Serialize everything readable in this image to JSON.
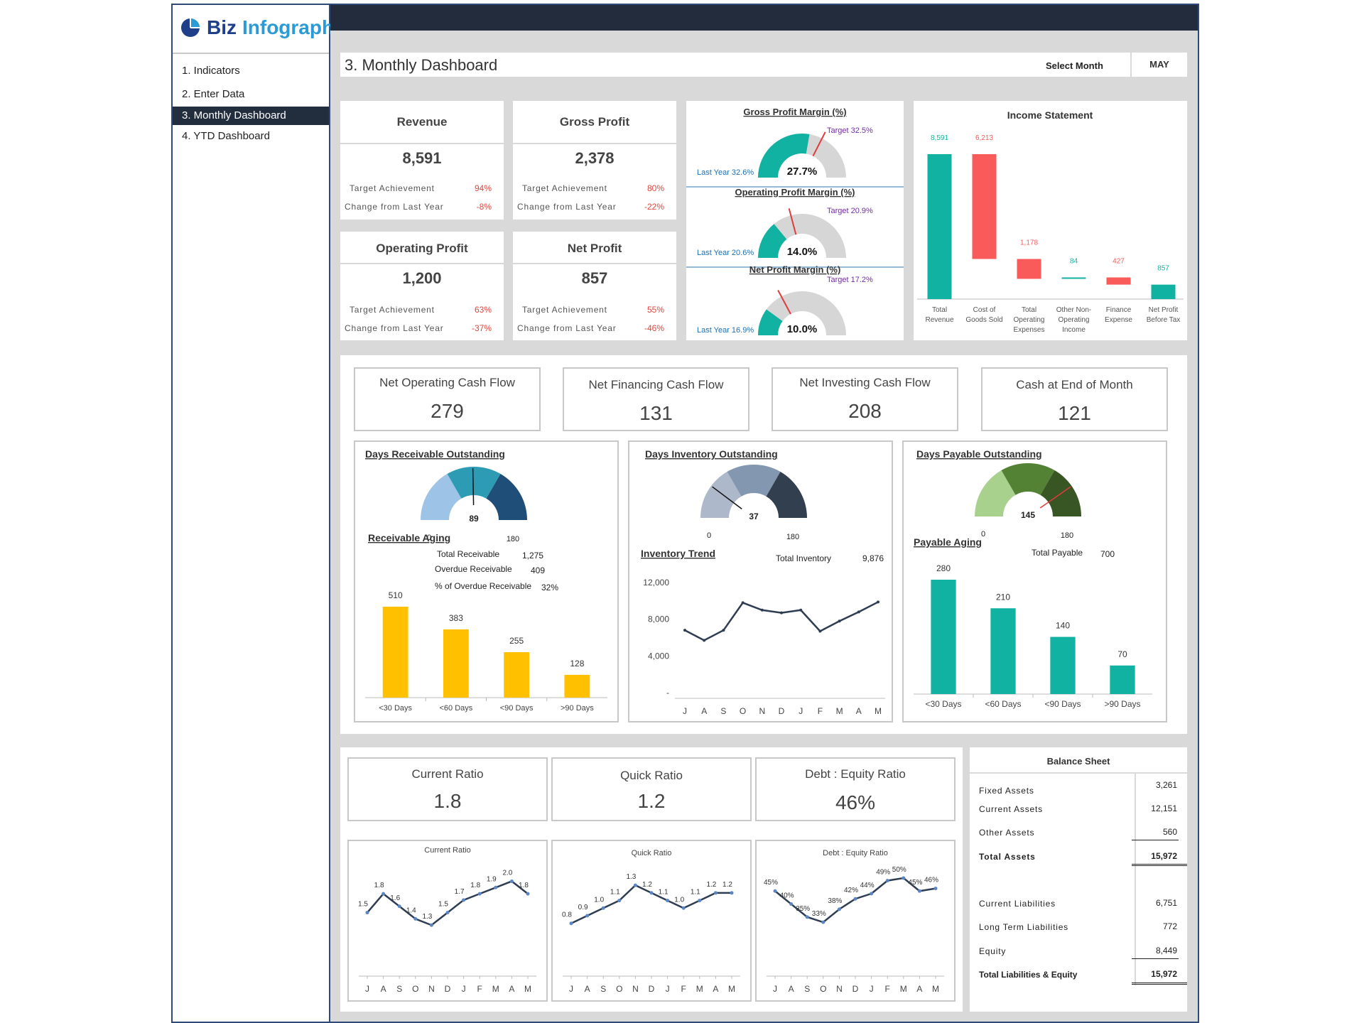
{
  "brand": {
    "name_part1": "Biz",
    "name_part2": "Infograph"
  },
  "nav": {
    "items": [
      {
        "label": "1. Indicators"
      },
      {
        "label": "2. Enter Data"
      },
      {
        "label": "3. Monthly Dashboard"
      },
      {
        "label": "4. YTD Dashboard"
      }
    ],
    "active_index": 2
  },
  "header": {
    "title": "3. Monthly Dashboard",
    "select_label": "Select Month",
    "month": "MAY"
  },
  "kpis": [
    {
      "title": "Revenue",
      "value": "8,591",
      "target_label": "Target Achievement",
      "target": "94%",
      "change_label": "Change from Last Year",
      "change": "-8%"
    },
    {
      "title": "Gross Profit",
      "value": "2,378",
      "target_label": "Target Achievement",
      "target": "80%",
      "change_label": "Change from Last Year",
      "change": "-22%"
    },
    {
      "title": "Operating Profit",
      "value": "1,200",
      "target_label": "Target Achievement",
      "target": "63%",
      "change_label": "Change from Last Year",
      "change": "-37%"
    },
    {
      "title": "Net Profit",
      "value": "857",
      "target_label": "Target Achievement",
      "target": "55%",
      "change_label": "Change from Last Year",
      "change": "-46%"
    }
  ],
  "margins": [
    {
      "title": "Gross Profit Margin (%)",
      "value": "27.7%",
      "value_frac": 0.277,
      "target_label": "Target 32.5%",
      "target_frac": 0.325,
      "last_year_label": "Last Year 32.6%"
    },
    {
      "title": "Operating Profit Margin (%)",
      "value": "14.0%",
      "value_frac": 0.14,
      "target_label": "Target 20.9%",
      "target_frac": 0.209,
      "last_year_label": "Last Year 20.6%"
    },
    {
      "title": "Net Profit Margin (%)",
      "value": "10.0%",
      "value_frac": 0.1,
      "target_label": "Target 17.2%",
      "target_frac": 0.172,
      "last_year_label": "Last Year 16.9%"
    }
  ],
  "income_statement": {
    "title": "Income Statement",
    "chart_data": {
      "type": "bar",
      "categories": [
        "Total Revenue",
        "Cost of Goods Sold",
        "Total Operating Expenses",
        "Other Non-Operating Income",
        "Finance Expense",
        "Net Profit Before Tax"
      ],
      "category_lines": [
        [
          "Total",
          "Revenue"
        ],
        [
          "Cost of",
          "Goods Sold"
        ],
        [
          "Total",
          "Operating",
          "Expenses"
        ],
        [
          "Other Non-",
          "Operating",
          "Income"
        ],
        [
          "Finance",
          "Expense"
        ],
        [
          "Net Profit",
          "Before Tax"
        ]
      ],
      "values": [
        8591,
        6213,
        1178,
        84,
        427,
        857
      ],
      "labels": [
        "8,591",
        "6,213",
        "1,178",
        "84",
        "427",
        "857"
      ],
      "kind": [
        "total",
        "decrease",
        "decrease",
        "increase",
        "decrease",
        "total"
      ],
      "colors": {
        "positive": "#12b2a2",
        "negative": "#f95a5a"
      }
    }
  },
  "cash_flow": [
    {
      "title": "Net Operating Cash Flow",
      "value": "279"
    },
    {
      "title": "Net Financing Cash Flow",
      "value": "131"
    },
    {
      "title": "Net Investing Cash Flow",
      "value": "208"
    },
    {
      "title": "Cash at End of Month",
      "value": "121"
    }
  ],
  "receivable": {
    "gauge_title": "Days Receivable Outstanding",
    "gauge_value": "89",
    "gauge_min": "0",
    "gauge_max": "180",
    "gauge_frac": 0.494,
    "gauge_colors": [
      "#9dc3e6",
      "#2e9bb5",
      "#1f4e79"
    ],
    "aging_title": "Receivable Aging",
    "total_label": "Total Receivable",
    "total": "1,275",
    "overdue_label": "Overdue Receivable",
    "overdue": "409",
    "pct_label": "% of Overdue Receivable",
    "pct": "32%",
    "chart_data": {
      "type": "bar",
      "categories": [
        "<30 Days",
        "<60 Days",
        "<90 Days",
        ">90 Days"
      ],
      "values": [
        510,
        383,
        255,
        128
      ],
      "color": "#ffc000"
    }
  },
  "inventory": {
    "gauge_title": "Days Inventory Outstanding",
    "gauge_value": "37",
    "gauge_min": "0",
    "gauge_max": "180",
    "gauge_frac": 0.205,
    "gauge_colors": [
      "#adb9ca",
      "#8497b0",
      "#323f4f"
    ],
    "trend_title": "Inventory Trend",
    "total_label": "Total Inventory",
    "total": "9,876",
    "chart_data": {
      "type": "line",
      "x": [
        "J",
        "A",
        "S",
        "O",
        "N",
        "D",
        "J",
        "F",
        "M",
        "A",
        "M"
      ],
      "values": [
        6800,
        5700,
        6800,
        9800,
        9000,
        8700,
        9000,
        6700,
        7800,
        8800,
        9876
      ],
      "yticks": [
        "12,000",
        "8,000",
        "4,000",
        "-"
      ],
      "ylim": [
        0,
        12000
      ],
      "color": "#2f3d52"
    }
  },
  "payable": {
    "gauge_title": "Days Payable Outstanding",
    "gauge_value": "145",
    "gauge_min": "0",
    "gauge_max": "180",
    "gauge_frac": 0.806,
    "gauge_colors": [
      "#a9d18e",
      "#548235",
      "#375623"
    ],
    "aging_title": "Payable Aging",
    "total_label": "Total Payable",
    "total": "700",
    "chart_data": {
      "type": "bar",
      "categories": [
        "<30 Days",
        "<60 Days",
        "<90 Days",
        ">90 Days"
      ],
      "values": [
        280,
        210,
        140,
        70
      ],
      "color": "#12b2a2"
    }
  },
  "ratios": [
    {
      "title": "Current Ratio",
      "value": "1.8"
    },
    {
      "title": "Quick Ratio",
      "value": "1.2"
    },
    {
      "title": "Debt : Equity Ratio",
      "value": "46%"
    }
  ],
  "ratio_charts": [
    {
      "chart_data": {
        "type": "line",
        "title": "Current Ratio",
        "x": [
          "J",
          "A",
          "S",
          "O",
          "N",
          "D",
          "J",
          "F",
          "M",
          "A",
          "M"
        ],
        "values": [
          1.5,
          1.8,
          1.6,
          1.4,
          1.3,
          1.5,
          1.7,
          1.8,
          1.9,
          2.0,
          1.8
        ],
        "labels": [
          "1.5",
          "1.8",
          "1.6",
          "1.4",
          "1.3",
          "1.5",
          "1.7",
          "1.8",
          "1.9",
          "2.0",
          "1.8"
        ],
        "ylim": [
          0.6,
          2.3
        ]
      }
    },
    {
      "chart_data": {
        "type": "line",
        "title": "Quick Ratio",
        "x": [
          "J",
          "A",
          "S",
          "O",
          "N",
          "D",
          "J",
          "F",
          "M",
          "A",
          "M"
        ],
        "values": [
          0.8,
          0.9,
          1.0,
          1.1,
          1.3,
          1.2,
          1.1,
          1.0,
          1.1,
          1.2,
          1.2
        ],
        "labels": [
          "0.8",
          "0.9",
          "1.0",
          "1.1",
          "1.3",
          "1.2",
          "1.1",
          "1.0",
          "1.1",
          "1.2",
          "1.2"
        ],
        "ylim": [
          0.2,
          1.6
        ]
      }
    },
    {
      "chart_data": {
        "type": "line",
        "title": "Debt : Equity Ratio",
        "x": [
          "J",
          "A",
          "S",
          "O",
          "N",
          "D",
          "J",
          "F",
          "M",
          "A",
          "M"
        ],
        "values": [
          45,
          40,
          35,
          33,
          38,
          42,
          44,
          49,
          50,
          45,
          46
        ],
        "labels": [
          "45%",
          "40%",
          "35%",
          "33%",
          "38%",
          "42%",
          "44%",
          "49%",
          "50%",
          "45%",
          "46%"
        ],
        "ylim": [
          15,
          56
        ]
      }
    }
  ],
  "balance_sheet": {
    "title": "Balance Sheet",
    "rows": [
      {
        "label": "Fixed Assets",
        "value": "3,261"
      },
      {
        "label": "Current Assets",
        "value": "12,151"
      },
      {
        "label": "Other Assets",
        "value": "560"
      },
      {
        "label": "Total Assets",
        "value": "15,972"
      },
      {
        "label": "Current Liabilities",
        "value": "6,751"
      },
      {
        "label": "Long Term Liabilities",
        "value": "772"
      },
      {
        "label": "Equity",
        "value": "8,449"
      },
      {
        "label": "Total Liabilities & Equity",
        "value": "15,972"
      }
    ]
  }
}
